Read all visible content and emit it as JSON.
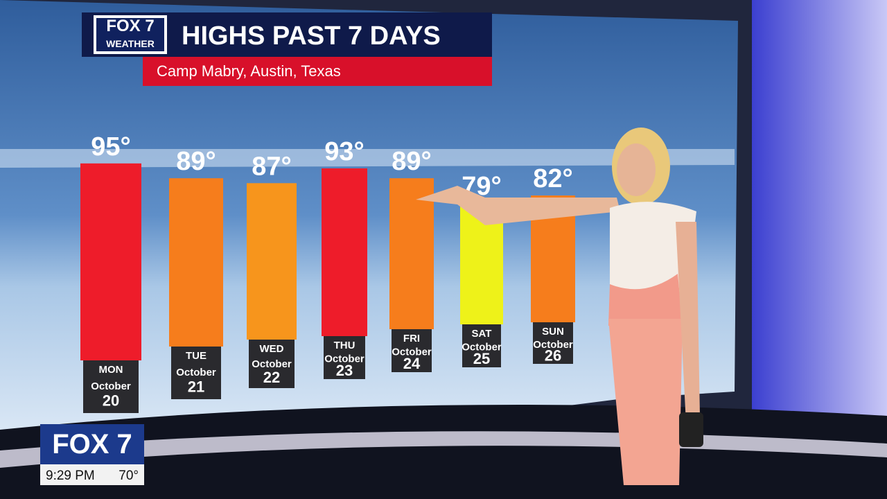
{
  "chart_data": {
    "type": "bar",
    "logo": [
      "FOX 7",
      "WEATHER"
    ],
    "title": "HIGHS PAST 7 DAYS",
    "subtitle": "Camp Mabry, Austin, Texas",
    "categories": [
      [
        "MON",
        "October",
        "20"
      ],
      [
        "TUE",
        "October",
        "21"
      ],
      [
        "WED",
        "October",
        "22"
      ],
      [
        "THU",
        "October",
        "23"
      ],
      [
        "FRI",
        "October",
        "24"
      ],
      [
        "SAT",
        "October",
        "25"
      ],
      [
        "SUN",
        "October",
        "26"
      ]
    ],
    "values": [
      95,
      89,
      87,
      93,
      89,
      79,
      82
    ],
    "value_labels": [
      "95°",
      "89°",
      "87°",
      "93°",
      "89°",
      "79°",
      "82°"
    ],
    "colors": [
      "#ee1c2a",
      "#f67d1c",
      "#f7951c",
      "#ee1c2a",
      "#f67d1c",
      "#eef219",
      "#f67d1c"
    ]
  },
  "bug": {
    "station": "FOX 7",
    "time": "9:29 PM",
    "temperature": "70°"
  }
}
